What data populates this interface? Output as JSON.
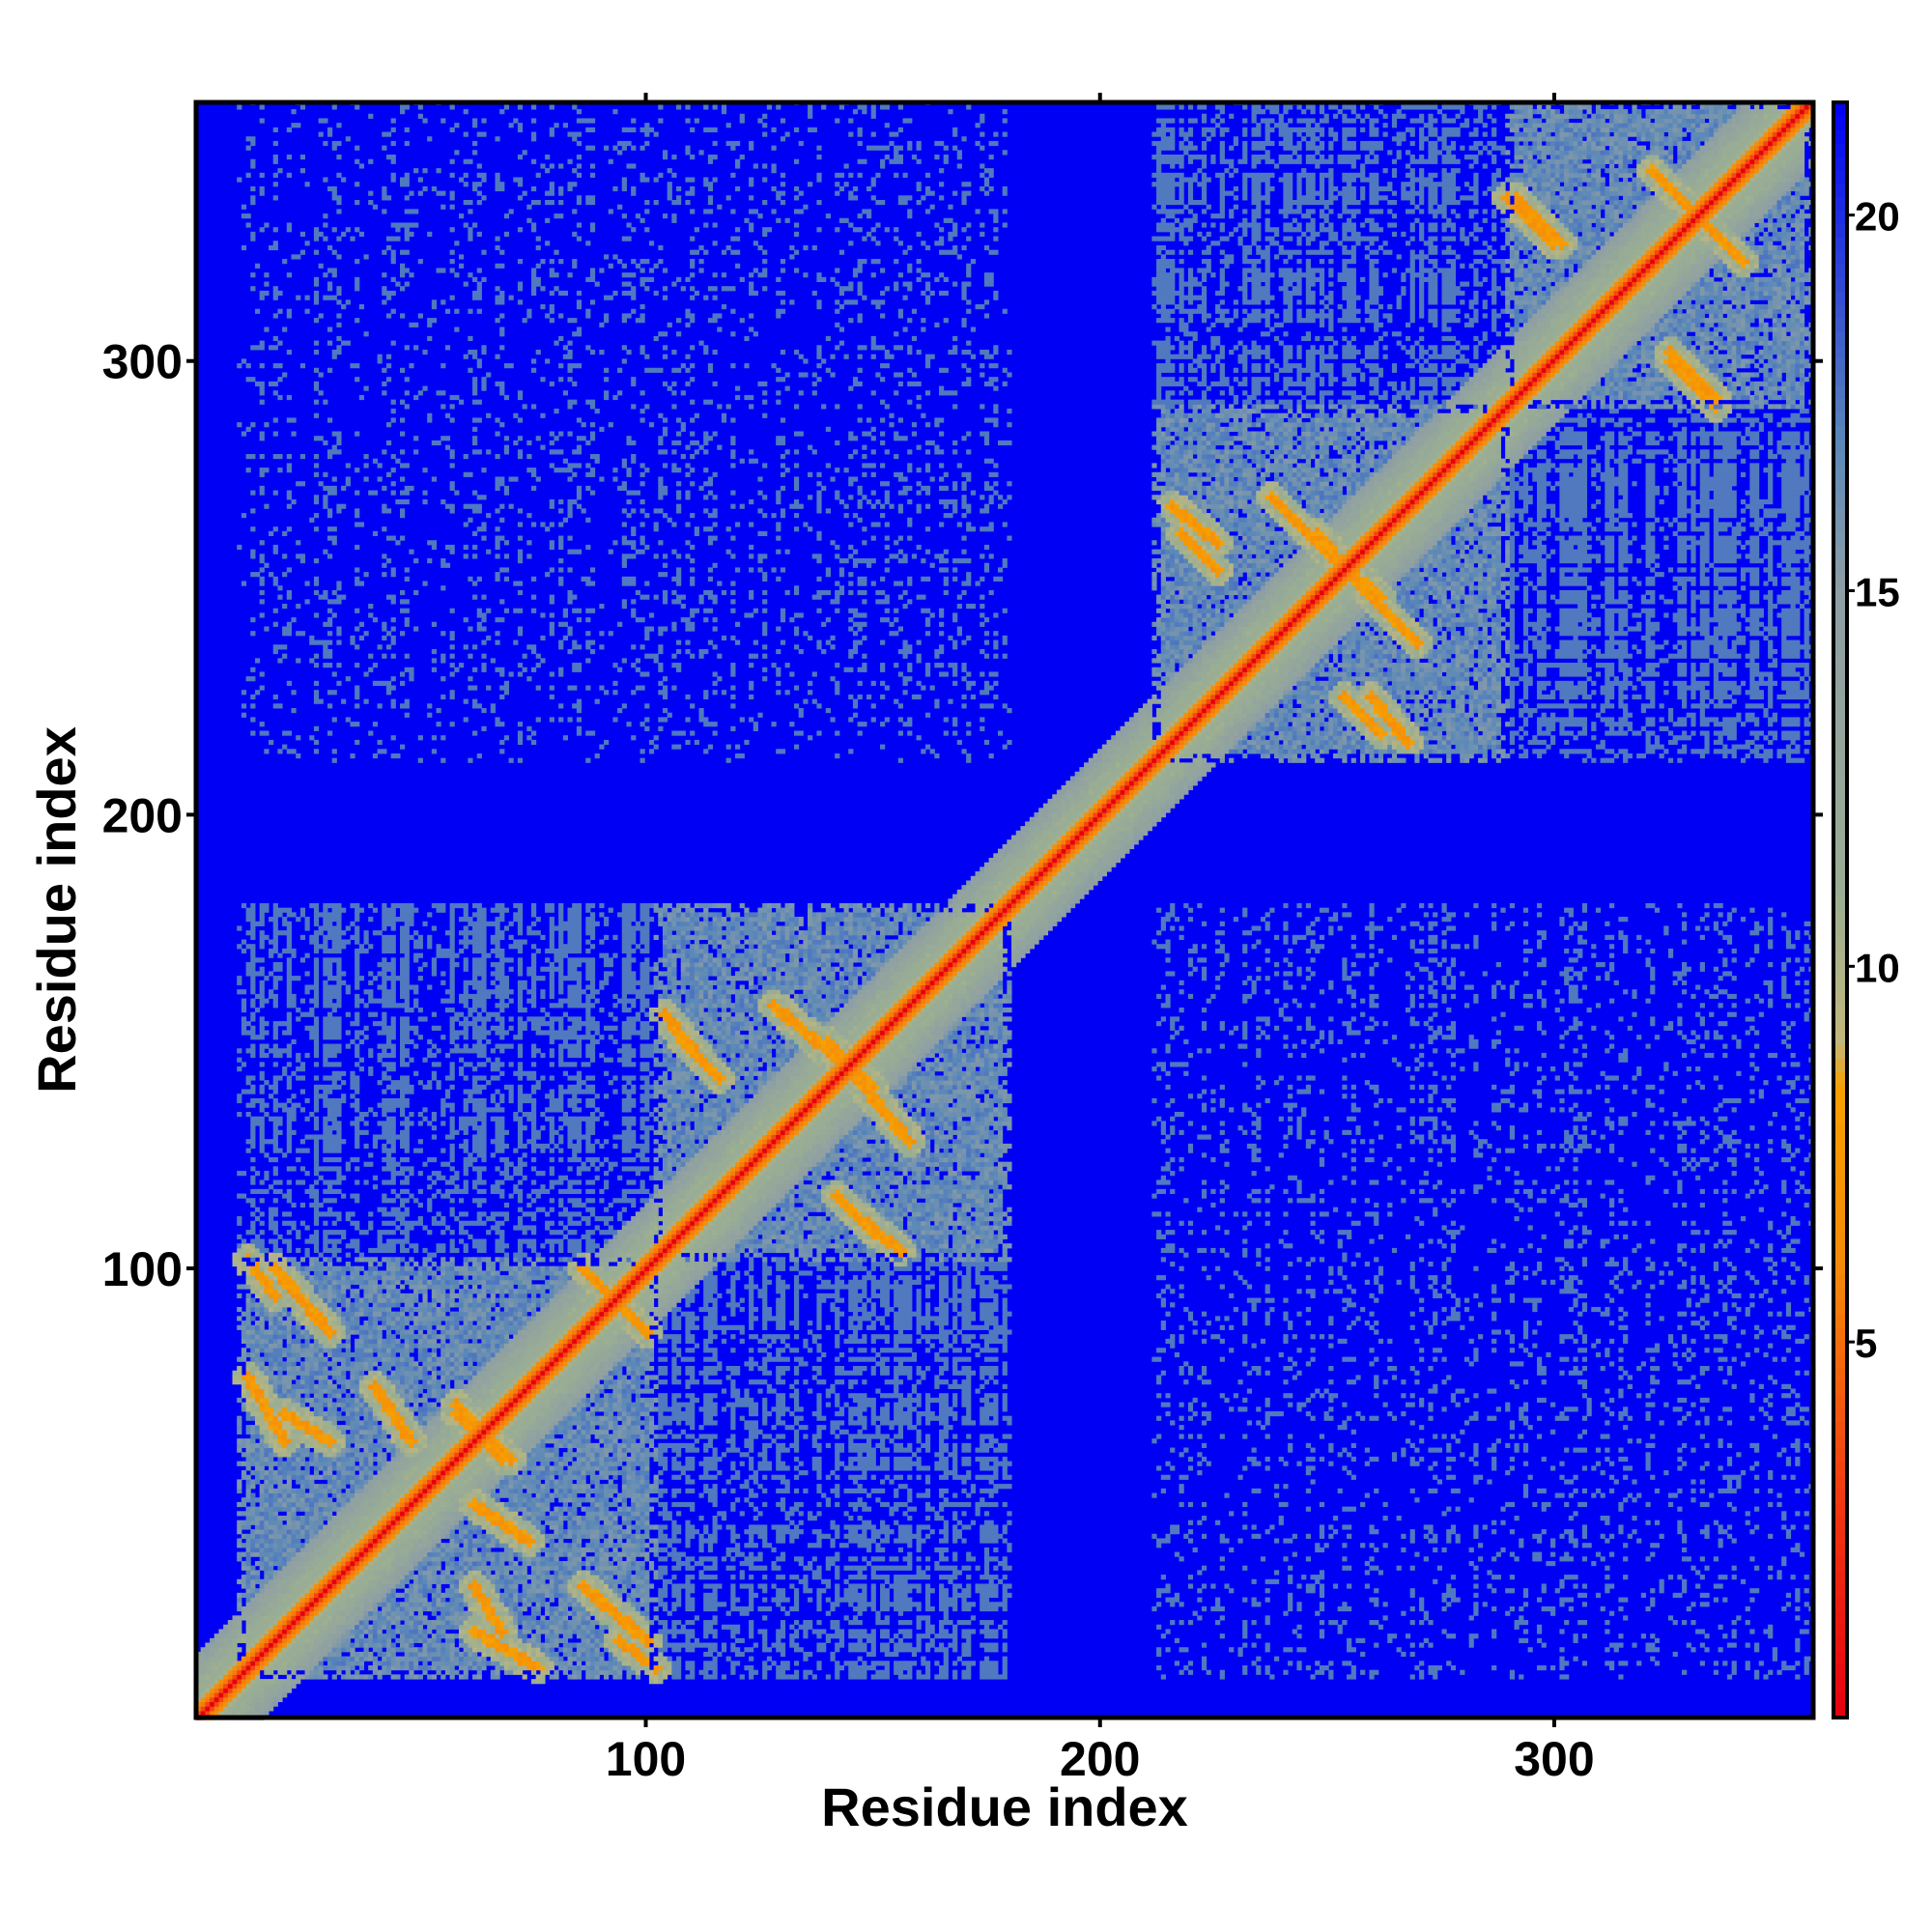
{
  "chart_data": {
    "type": "heatmap",
    "title": "",
    "xlabel": "Residue index",
    "ylabel": "Residue index",
    "n_residues": 357,
    "xlim": [
      1,
      357
    ],
    "ylim": [
      1,
      357
    ],
    "x_ticks": [
      100,
      200,
      300
    ],
    "y_ticks": [
      100,
      200,
      300
    ],
    "colorbar": {
      "ticks": [
        5,
        10,
        15,
        20
      ],
      "range": [
        0,
        21.5
      ],
      "stops": [
        {
          "value": 0,
          "color": "#e6000f"
        },
        {
          "value": 3,
          "color": "#f23a10"
        },
        {
          "value": 6,
          "color": "#f58a0a"
        },
        {
          "value": 8.4,
          "color": "#f7a000"
        },
        {
          "value": 9,
          "color": "#c2b77c"
        },
        {
          "value": 11,
          "color": "#9aae93"
        },
        {
          "value": 15,
          "color": "#8e9ea5"
        },
        {
          "value": 17,
          "color": "#5a88b8"
        },
        {
          "value": 21.5,
          "color": "#0000f5"
        }
      ]
    },
    "background_color": "#0000f5",
    "domains": [
      {
        "start": 10,
        "end": 102,
        "cutoff": 12
      },
      {
        "start": 102,
        "end": 180,
        "cutoff": 11
      },
      {
        "start": 212,
        "end": 290,
        "cutoff": 11
      },
      {
        "start": 290,
        "end": 357,
        "cutoff": 12
      }
    ],
    "domain_pairs": [
      {
        "a": [
          10,
          102
        ],
        "b": [
          102,
          180
        ],
        "level": 0.55
      },
      {
        "a": [
          212,
          290
        ],
        "b": [
          290,
          357
        ],
        "level": 0.6
      },
      {
        "a": [
          10,
          180
        ],
        "b": [
          212,
          357
        ],
        "level": 0.18
      }
    ],
    "contact_arms": [
      {
        "from": [
          18,
          100
        ],
        "to": [
          30,
          86
        ]
      },
      {
        "from": [
          20,
          68
        ],
        "to": [
          30,
          62
        ]
      },
      {
        "from": [
          58,
          70
        ],
        "to": [
          68,
          58
        ]
      },
      {
        "from": [
          62,
          48
        ],
        "to": [
          74,
          40
        ]
      },
      {
        "from": [
          86,
          100
        ],
        "to": [
          96,
          90
        ]
      },
      {
        "from": [
          62,
          20
        ],
        "to": [
          76,
          12
        ]
      },
      {
        "from": [
          94,
          18
        ],
        "to": [
          102,
          12
        ]
      },
      {
        "from": [
          108,
          150
        ],
        "to": [
          116,
          142
        ]
      },
      {
        "from": [
          138,
          150
        ],
        "to": [
          150,
          140
        ]
      },
      {
        "from": [
          148,
          140
        ],
        "to": [
          158,
          128
        ]
      },
      {
        "from": [
          146,
          112
        ],
        "to": [
          156,
          104
        ]
      },
      {
        "from": [
          218,
          262
        ],
        "to": [
          226,
          254
        ]
      },
      {
        "from": [
          248,
          262
        ],
        "to": [
          258,
          250
        ]
      },
      {
        "from": [
          258,
          250
        ],
        "to": [
          270,
          238
        ]
      },
      {
        "from": [
          260,
          226
        ],
        "to": [
          268,
          216
        ]
      },
      {
        "from": [
          292,
          336
        ],
        "to": [
          302,
          326
        ]
      },
      {
        "from": [
          322,
          342
        ],
        "to": [
          332,
          332
        ]
      },
      {
        "from": [
          326,
          300
        ],
        "to": [
          336,
          290
        ]
      }
    ],
    "grid": false,
    "legend": "right"
  }
}
